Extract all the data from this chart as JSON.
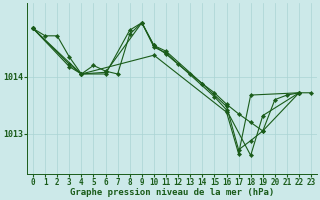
{
  "background_color": "#cce9e9",
  "plot_bg_color": "#cce9e9",
  "line_color": "#1a5c1a",
  "grid_color": "#aad4d4",
  "tick_color": "#1a5c1a",
  "title": "Graphe pression niveau de la mer (hPa)",
  "title_fontsize": 6.5,
  "tick_fontsize": 5.5,
  "yticks": [
    1013,
    1014
  ],
  "xticks": [
    0,
    1,
    2,
    3,
    4,
    5,
    6,
    7,
    8,
    9,
    10,
    11,
    12,
    13,
    14,
    15,
    16,
    17,
    18,
    19,
    20,
    21,
    22,
    23
  ],
  "ylim": [
    1012.3,
    1015.3
  ],
  "xlim": [
    -0.5,
    23.5
  ],
  "series": [
    {
      "x": [
        0,
        1,
        2,
        3,
        4,
        5,
        6,
        7,
        8,
        9,
        10,
        11,
        12,
        13,
        14,
        15,
        16,
        17,
        18,
        19,
        20,
        21,
        22,
        23
      ],
      "y": [
        1014.85,
        1014.72,
        1014.72,
        1014.35,
        1014.05,
        1014.2,
        1014.1,
        1014.05,
        1014.75,
        1014.95,
        1014.55,
        1014.4,
        1014.22,
        1014.05,
        1013.88,
        1013.72,
        1013.52,
        1013.35,
        1013.2,
        1013.05,
        1013.6,
        1013.68,
        1013.72,
        1013.72
      ]
    },
    {
      "x": [
        0,
        3,
        4,
        6,
        8,
        9,
        10,
        11,
        14,
        16,
        17,
        18,
        19,
        22
      ],
      "y": [
        1014.85,
        1014.22,
        1014.05,
        1014.05,
        1014.82,
        1014.95,
        1014.55,
        1014.45,
        1013.88,
        1013.48,
        1012.72,
        1012.88,
        1013.05,
        1013.72
      ]
    },
    {
      "x": [
        0,
        3,
        4,
        6,
        9,
        10,
        11,
        15,
        16,
        18,
        19,
        22
      ],
      "y": [
        1014.85,
        1014.18,
        1014.05,
        1014.08,
        1014.95,
        1014.52,
        1014.42,
        1013.65,
        1013.42,
        1012.62,
        1013.32,
        1013.72
      ]
    },
    {
      "x": [
        0,
        4,
        10,
        16,
        17,
        18,
        22
      ],
      "y": [
        1014.85,
        1014.05,
        1014.38,
        1013.38,
        1012.65,
        1013.68,
        1013.72
      ]
    }
  ]
}
